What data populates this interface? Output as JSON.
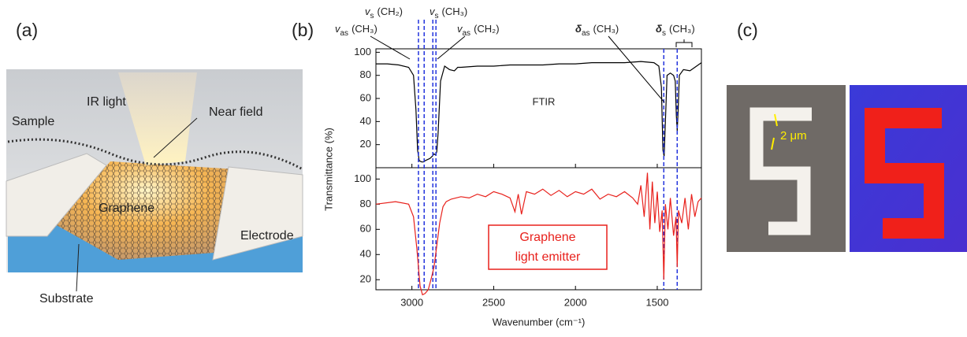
{
  "panel_a": {
    "label": "(a)",
    "ir_light": "IR light",
    "near_field": "Near field",
    "sample": "Sample",
    "graphene": "Graphene",
    "electrode": "Electrode",
    "substrate": "Substrate"
  },
  "panel_c": {
    "label": "(c)",
    "scale": "2 μm"
  },
  "panel_b": {
    "label": "(b)"
  },
  "chart_data": [
    {
      "type": "line",
      "ylabel": "Transmittance (%)",
      "annotation": "FTIR",
      "color": "#000000",
      "xlim": [
        3220,
        1230
      ],
      "ylim": [
        0,
        103
      ],
      "yticks": [
        20,
        40,
        60,
        80,
        100
      ],
      "x": [
        3220,
        3150,
        3080,
        3020,
        2990,
        2975,
        2965,
        2955,
        2940,
        2930,
        2920,
        2905,
        2890,
        2875,
        2865,
        2855,
        2848,
        2840,
        2825,
        2800,
        2770,
        2740,
        2720,
        2700,
        2600,
        2500,
        2400,
        2300,
        2200,
        2100,
        2000,
        1900,
        1800,
        1700,
        1600,
        1520,
        1490,
        1475,
        1465,
        1458,
        1450,
        1440,
        1420,
        1400,
        1390,
        1383,
        1378,
        1372,
        1365,
        1340,
        1300,
        1260,
        1230
      ],
      "values": [
        90,
        90,
        89,
        87,
        80,
        50,
        15,
        6,
        5,
        5,
        6,
        7,
        8,
        10,
        12,
        11,
        14,
        30,
        75,
        88,
        85,
        84,
        87,
        87,
        88,
        88,
        89,
        89,
        89,
        90,
        90,
        91,
        91,
        91,
        92,
        91,
        88,
        70,
        15,
        10,
        40,
        80,
        82,
        80,
        75,
        45,
        32,
        50,
        80,
        85,
        84,
        88,
        91
      ],
      "reference_lines": [
        2960,
        2925,
        2872,
        2853,
        1460,
        1378
      ],
      "reference_color": "#2233dd",
      "modes": [
        {
          "symbol": "v",
          "sub": "as",
          "group": "(CH₃)"
        },
        {
          "symbol": "v",
          "sub": "s",
          "group": "(CH₂)"
        },
        {
          "symbol": "v",
          "sub": "s",
          "group": "(CH₃)"
        },
        {
          "symbol": "v",
          "sub": "as",
          "group": "(CH₂)"
        },
        {
          "symbol": "δ",
          "sub": "as",
          "group": "(CH₃)"
        },
        {
          "symbol": "δ",
          "sub": "s",
          "group": "(CH₃)"
        }
      ]
    },
    {
      "type": "line",
      "annotation": [
        "Graphene",
        "light emitter"
      ],
      "color": "#e8211c",
      "xlabel": "Wavenumber (cm⁻¹)",
      "xlim": [
        3220,
        1230
      ],
      "xticks": [
        3000,
        2500,
        2000,
        1500
      ],
      "ylim": [
        12,
        109
      ],
      "yticks": [
        20,
        40,
        60,
        80,
        100
      ],
      "x": [
        3220,
        3100,
        3020,
        2990,
        2970,
        2950,
        2935,
        2920,
        2900,
        2880,
        2865,
        2850,
        2830,
        2810,
        2790,
        2760,
        2700,
        2650,
        2600,
        2550,
        2500,
        2450,
        2400,
        2370,
        2350,
        2330,
        2300,
        2250,
        2200,
        2150,
        2100,
        2050,
        2000,
        1950,
        1900,
        1850,
        1800,
        1750,
        1700,
        1650,
        1620,
        1600,
        1580,
        1560,
        1545,
        1530,
        1515,
        1500,
        1485,
        1470,
        1460,
        1450,
        1435,
        1420,
        1400,
        1385,
        1378,
        1370,
        1350,
        1330,
        1310,
        1290,
        1270,
        1250,
        1230
      ],
      "values": [
        80,
        82,
        80,
        70,
        45,
        15,
        8,
        9,
        12,
        22,
        30,
        45,
        65,
        78,
        82,
        84,
        86,
        85,
        88,
        86,
        90,
        88,
        85,
        74,
        88,
        72,
        90,
        88,
        92,
        87,
        91,
        86,
        90,
        88,
        92,
        84,
        88,
        86,
        90,
        85,
        80,
        95,
        70,
        105,
        60,
        98,
        65,
        90,
        58,
        75,
        20,
        80,
        60,
        85,
        55,
        70,
        30,
        75,
        65,
        85,
        60,
        88,
        70,
        82,
        85
      ]
    }
  ]
}
